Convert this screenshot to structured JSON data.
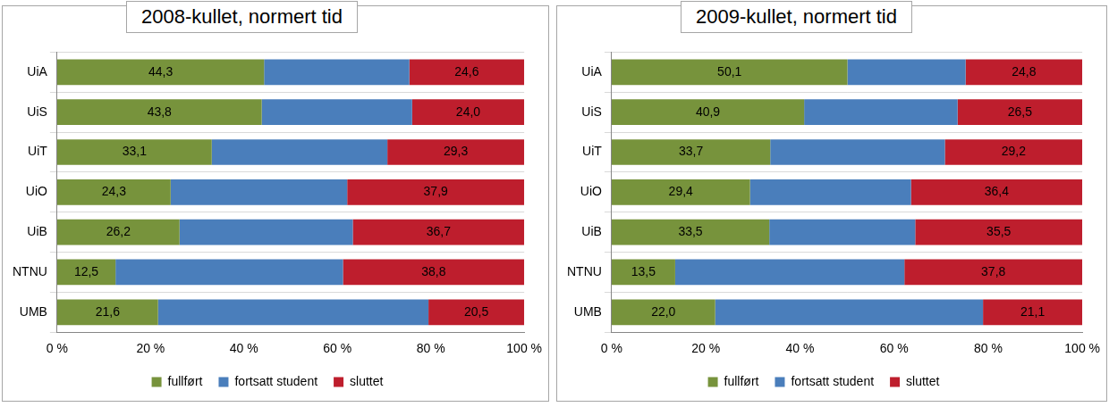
{
  "chart_data": [
    {
      "type": "bar",
      "title": "2008-kullet, normert tid",
      "orientation": "horizontal",
      "stacked": true,
      "categories": [
        "UiA",
        "UiS",
        "UiT",
        "UiO",
        "UiB",
        "NTNU",
        "UMB"
      ],
      "series": [
        {
          "name": "fullført",
          "color": "#77933C",
          "values": [
            44.3,
            43.8,
            33.1,
            24.3,
            26.2,
            12.5,
            21.6
          ],
          "value_labels": [
            "44,3",
            "43,8",
            "33,1",
            "24,3",
            "26,2",
            "12,5",
            "21,6"
          ]
        },
        {
          "name": "fortsatt student",
          "color": "#4A7EBB",
          "values": [
            31.1,
            32.2,
            37.6,
            37.8,
            37.1,
            48.7,
            57.9
          ]
        },
        {
          "name": "sluttet",
          "color": "#BE1E2D",
          "values": [
            24.6,
            24.0,
            29.3,
            37.9,
            36.7,
            38.8,
            20.5
          ],
          "value_labels": [
            "24,6",
            "24,0",
            "29,3",
            "37,9",
            "36,7",
            "38,8",
            "20,5"
          ]
        }
      ],
      "xlim": [
        0,
        100
      ],
      "xticks": [
        {
          "value": 0,
          "label": "0 %"
        },
        {
          "value": 20,
          "label": "20 %"
        },
        {
          "value": 40,
          "label": "40 %"
        },
        {
          "value": 60,
          "label": "60 %"
        },
        {
          "value": 80,
          "label": "80 %"
        },
        {
          "value": 100,
          "label": "100 %"
        }
      ],
      "grid": true,
      "legend": "bottom",
      "data_labels": true
    },
    {
      "type": "bar",
      "title": "2009-kullet, normert tid",
      "orientation": "horizontal",
      "stacked": true,
      "categories": [
        "UiA",
        "UiS",
        "UiT",
        "UiO",
        "UiB",
        "NTNU",
        "UMB"
      ],
      "series": [
        {
          "name": "fullført",
          "color": "#77933C",
          "values": [
            50.1,
            40.9,
            33.7,
            29.4,
            33.5,
            13.5,
            22.0
          ],
          "value_labels": [
            "50,1",
            "40,9",
            "33,7",
            "29,4",
            "33,5",
            "13,5",
            "22,0"
          ]
        },
        {
          "name": "fortsatt student",
          "color": "#4A7EBB",
          "values": [
            25.1,
            32.6,
            37.1,
            34.2,
            31.0,
            48.7,
            56.9
          ]
        },
        {
          "name": "sluttet",
          "color": "#BE1E2D",
          "values": [
            24.8,
            26.5,
            29.2,
            36.4,
            35.5,
            37.8,
            21.1
          ],
          "value_labels": [
            "24,8",
            "26,5",
            "29,2",
            "36,4",
            "35,5",
            "37,8",
            "21,1"
          ]
        }
      ],
      "xlim": [
        0,
        100
      ],
      "xticks": [
        {
          "value": 0,
          "label": "0 %"
        },
        {
          "value": 20,
          "label": "20 %"
        },
        {
          "value": 40,
          "label": "40 %"
        },
        {
          "value": 60,
          "label": "60 %"
        },
        {
          "value": 80,
          "label": "80 %"
        },
        {
          "value": 100,
          "label": "100 %"
        }
      ],
      "grid": true,
      "legend": "bottom",
      "data_labels": true
    }
  ]
}
